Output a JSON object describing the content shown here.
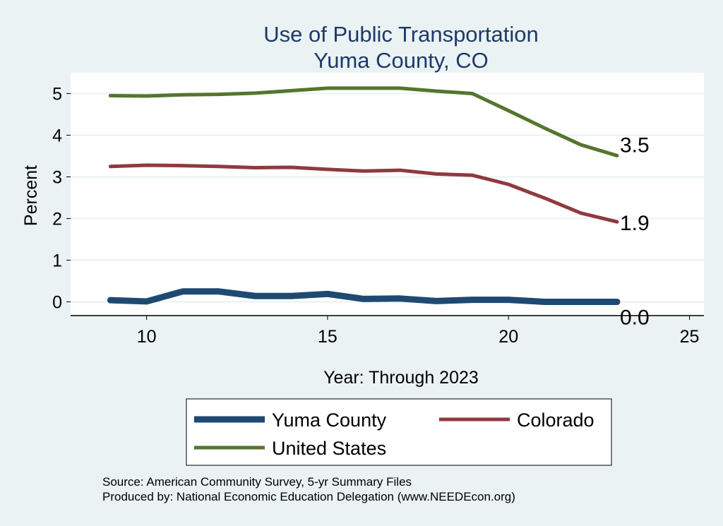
{
  "chart_data": {
    "type": "line",
    "title": [
      "Use of Public Transportation",
      "Yuma County, CO"
    ],
    "xlabel": "Year: Through 2023",
    "ylabel": "Percent",
    "xlim": [
      7.9,
      25.4
    ],
    "ylim": [
      -0.33,
      5.5
    ],
    "xticks": [
      10,
      15,
      20,
      25
    ],
    "yticks": [
      0,
      1,
      2,
      3,
      4,
      5
    ],
    "grid": true,
    "x": [
      9,
      10,
      11,
      12,
      13,
      14,
      15,
      16,
      17,
      18,
      19,
      20,
      21,
      22,
      23
    ],
    "series": [
      {
        "name": "Yuma County",
        "color": "#1e4a72",
        "values": [
          0.04,
          0.01,
          0.25,
          0.25,
          0.14,
          0.14,
          0.19,
          0.07,
          0.08,
          0.02,
          0.05,
          0.05,
          0.0,
          0.0,
          0.0
        ],
        "end_label": "0.0"
      },
      {
        "name": "Colorado",
        "color": "#8e3a40",
        "values": [
          3.25,
          3.28,
          3.27,
          3.25,
          3.22,
          3.23,
          3.18,
          3.14,
          3.16,
          3.07,
          3.04,
          2.82,
          2.49,
          2.13,
          1.92
        ],
        "end_label": "1.9"
      },
      {
        "name": "United States",
        "color": "#55752e",
        "values": [
          4.95,
          4.94,
          4.97,
          4.98,
          5.01,
          5.07,
          5.13,
          5.13,
          5.13,
          5.06,
          5.0,
          4.59,
          4.17,
          3.77,
          3.51
        ],
        "end_label": "3.5"
      }
    ],
    "legend_position": "bottom"
  },
  "notes": {
    "source": "Source: American Community Survey, 5-yr Summary Files",
    "produced": "Produced by: National Economic Education Delegation (www.NEEDEcon.org)"
  }
}
